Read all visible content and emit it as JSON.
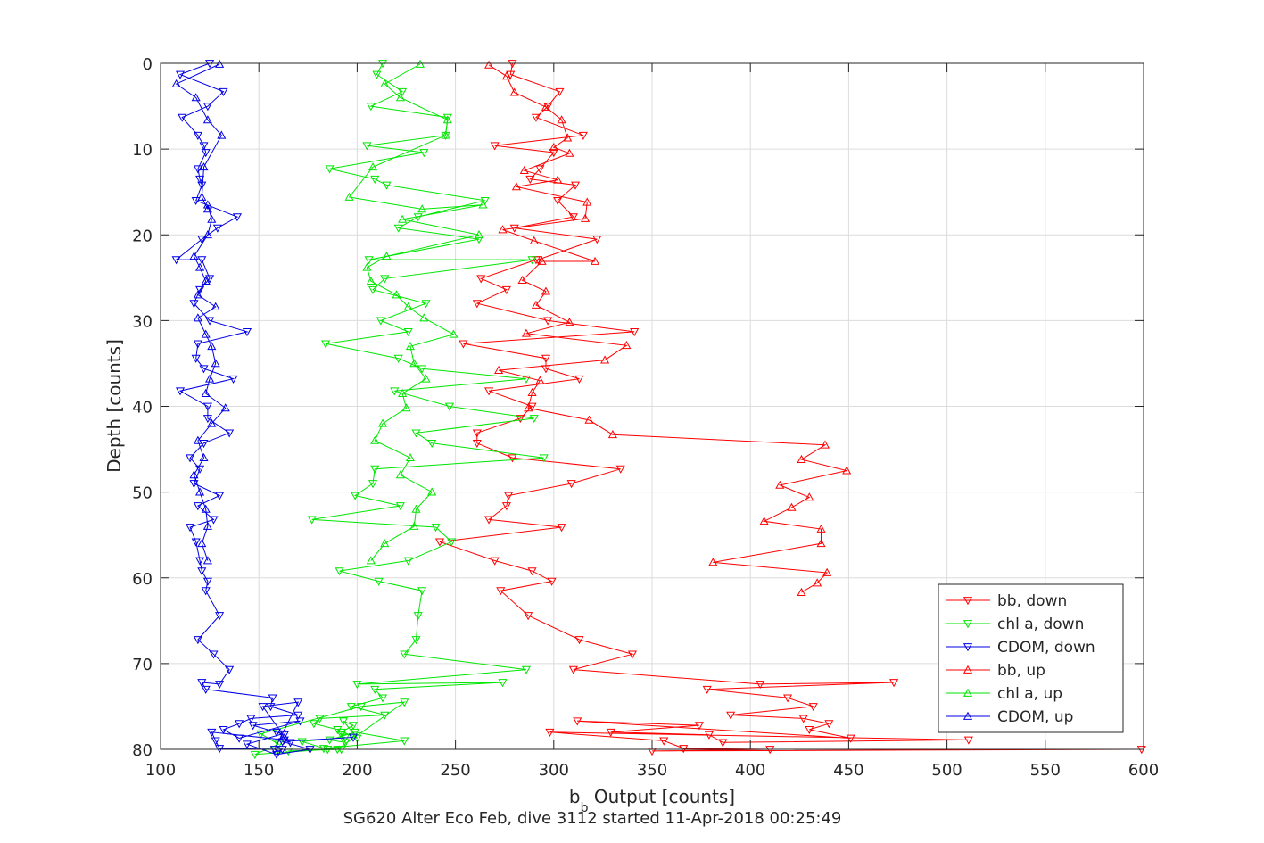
{
  "chart_data": {
    "type": "line",
    "title": "",
    "xlabel": "b",
    "xlabel_sub": "b",
    "xlabel_rest": " Output [counts]",
    "ylabel": "Depth [counts]",
    "caption": "SG620 Alter Eco Feb, dive 3112 started 11-Apr-2018 00:25:49",
    "xlim": [
      100,
      600
    ],
    "ylim": [
      0,
      80
    ],
    "y_reversed": true,
    "grid": true,
    "legend_position": "bottom-right",
    "xticks": [
      "100",
      "150",
      "200",
      "250",
      "300",
      "350",
      "400",
      "450",
      "500",
      "550",
      "600"
    ],
    "yticks": [
      "0",
      "10",
      "20",
      "30",
      "40",
      "50",
      "60",
      "70",
      "80"
    ],
    "series": [
      {
        "name": "bb, down",
        "color": "#ff0000",
        "marker": "triangle-down",
        "x": [
          279,
          278,
          303,
          297,
          291,
          315,
          270,
          300,
          293,
          288,
          311,
          302,
          310,
          280,
          322,
          292,
          291,
          263,
          276,
          261,
          297,
          341,
          254,
          296,
          296,
          313,
          267,
          289,
          283,
          261,
          261,
          279,
          334,
          309,
          277,
          276,
          267,
          304,
          242,
          270,
          289,
          299,
          273,
          287,
          313,
          340,
          310,
          405,
          473,
          378,
          419,
          432,
          390,
          427,
          440,
          430,
          451,
          312,
          374,
          329,
          379,
          386,
          511,
          298,
          356,
          366,
          410,
          350,
          599
        ],
        "y": [
          0,
          1.3,
          3.3,
          5,
          6.3,
          8.4,
          9.6,
          10.4,
          12.3,
          13.5,
          14.2,
          16,
          17.9,
          19.2,
          20.5,
          22.9,
          22.9,
          25.1,
          26.4,
          28,
          30,
          31.3,
          32.7,
          34.4,
          35.6,
          36.8,
          38.2,
          40,
          41.4,
          43.1,
          44.3,
          46,
          47.3,
          49,
          50.4,
          51.6,
          53.2,
          54.1,
          55.8,
          58,
          59.2,
          60.4,
          61.5,
          64.4,
          67.2,
          68.9,
          70.7,
          72.4,
          72.2,
          73,
          74,
          75,
          76,
          76.4,
          77,
          77.7,
          78.7,
          76.7,
          77.2,
          78,
          78.3,
          79.2,
          78.9,
          78,
          79,
          79.9,
          80,
          80.2,
          80
        ]
      },
      {
        "name": "chl a, down",
        "color": "#00e600",
        "marker": "triangle-down",
        "x": [
          213,
          210,
          223,
          207,
          246,
          245,
          205,
          234,
          186,
          209,
          215,
          265,
          231,
          221,
          262,
          206,
          289,
          214,
          208,
          235,
          212,
          226,
          184,
          221,
          233,
          286,
          219,
          247,
          290,
          230,
          238,
          295,
          209,
          208,
          199,
          222,
          177,
          240,
          248,
          226,
          191,
          211,
          233,
          231,
          230,
          224,
          286,
          200,
          274,
          209,
          213,
          197,
          214,
          181,
          178,
          190,
          200,
          193,
          198,
          192,
          192,
          194,
          186,
          199,
          224,
          183,
          192,
          165,
          190,
          224,
          202,
          151,
          160,
          148,
          185,
          172,
          194
        ],
        "y": [
          0,
          1.3,
          3.3,
          5,
          6.3,
          8.4,
          9.6,
          10.4,
          12.3,
          13.5,
          14.2,
          16,
          17.9,
          19.2,
          20.5,
          22.9,
          22.9,
          25.1,
          26.4,
          28,
          30,
          31.3,
          32.7,
          34.4,
          35.6,
          36.8,
          38.2,
          40,
          41.4,
          43.1,
          44.3,
          46,
          47.3,
          49,
          50.4,
          51.6,
          53.2,
          54.1,
          55.8,
          58,
          59.2,
          60.4,
          61.5,
          64.4,
          67.2,
          68.9,
          70.7,
          72.4,
          72.2,
          73,
          74,
          75,
          76,
          76.4,
          77,
          77.7,
          78.7,
          76.7,
          77.2,
          78,
          78.3,
          79.2,
          78.9,
          78,
          79,
          79.9,
          80,
          80.2,
          80,
          74.5,
          75,
          78.2,
          79.4,
          80.6,
          80,
          79.1,
          78.6
        ]
      },
      {
        "name": "CDOM, down",
        "color": "#0000e6",
        "marker": "triangle-down",
        "x": [
          125,
          110,
          132,
          124,
          111,
          119,
          122,
          123,
          119,
          120,
          121,
          118,
          139,
          129,
          121,
          108,
          121,
          125,
          120,
          117,
          125,
          144,
          119,
          118,
          122,
          137,
          110,
          124,
          124,
          135,
          122,
          115,
          120,
          117,
          130,
          119,
          127,
          115,
          118,
          120,
          121,
          124,
          123,
          130,
          119,
          127,
          135,
          130,
          121,
          123,
          157,
          156,
          170,
          146,
          140,
          132,
          140,
          171,
          147,
          159,
          163,
          166,
          163,
          126,
          128,
          130,
          162,
          160,
          158,
          170,
          152,
          162,
          144,
          159,
          176,
          162,
          198
        ],
        "y": [
          0,
          1.3,
          3.3,
          5,
          6.3,
          8.4,
          9.6,
          10.4,
          12.3,
          13.5,
          14.2,
          16,
          17.9,
          19.2,
          20.5,
          22.9,
          22.9,
          25.1,
          26.4,
          28,
          30,
          31.3,
          32.7,
          34.4,
          35.6,
          36.8,
          38.2,
          40,
          41.4,
          43.1,
          44.3,
          46,
          47.3,
          49,
          50.4,
          51.6,
          53.2,
          54.1,
          55.8,
          58,
          59.2,
          60.4,
          61.5,
          64.4,
          67.2,
          68.9,
          70.7,
          72.4,
          72.2,
          73,
          74,
          75,
          76,
          76.4,
          77,
          77.7,
          78.7,
          76.7,
          77.2,
          78,
          78.3,
          79.2,
          78.9,
          78,
          79,
          79.9,
          80,
          80.2,
          80,
          74.5,
          75,
          78.2,
          79.4,
          80.6,
          80,
          79.1,
          78.6
        ]
      },
      {
        "name": "bb, up",
        "color": "#ff0000",
        "marker": "triangle-up",
        "x": [
          267,
          276,
          280,
          296,
          304,
          307,
          300,
          308,
          285,
          302,
          281,
          317,
          316,
          274,
          290,
          321,
          294,
          284,
          296,
          291,
          308,
          286,
          337,
          326,
          272,
          293,
          289,
          287,
          318,
          330,
          438,
          426,
          449,
          415,
          430,
          421,
          407,
          436,
          436,
          381,
          439,
          434,
          426
        ],
        "y": [
          0.2,
          1.5,
          3.4,
          5.1,
          6.6,
          8.7,
          9.8,
          10.5,
          12.5,
          13.6,
          14.4,
          16.2,
          18.1,
          19.4,
          20.7,
          23.1,
          23.1,
          25.3,
          26.6,
          28.2,
          30.2,
          31.5,
          32.9,
          34.6,
          35.8,
          37,
          38.4,
          40.2,
          41.6,
          43.3,
          44.5,
          46.2,
          47.5,
          49.2,
          50.6,
          51.8,
          53.4,
          54.3,
          56,
          58.2,
          59.4,
          60.6,
          61.7
        ]
      },
      {
        "name": "chl a, up",
        "color": "#00e600",
        "marker": "triangle-up",
        "x": [
          232,
          214,
          222,
          246,
          245,
          208,
          196,
          233,
          264,
          223,
          262,
          215,
          205,
          207,
          220,
          226,
          234,
          249,
          227,
          229,
          235,
          223,
          225,
          213,
          209,
          227,
          222,
          238,
          230,
          229,
          214,
          207
        ],
        "y": [
          0.1,
          2.4,
          4,
          6.6,
          8.4,
          12.1,
          15.6,
          17,
          16.5,
          18.2,
          20,
          22.5,
          23.8,
          25.4,
          27,
          28.4,
          29.7,
          31.6,
          33,
          35,
          36.8,
          38.5,
          40.2,
          42,
          44,
          46,
          48,
          50,
          52,
          54,
          56,
          58
        ]
      },
      {
        "name": "CDOM, up",
        "color": "#0000e6",
        "marker": "triangle-up",
        "x": [
          130,
          108,
          118,
          124,
          131,
          122,
          121,
          124,
          124,
          126,
          124,
          117,
          120,
          123,
          119,
          128,
          119,
          123,
          126,
          128,
          125,
          123,
          133,
          126,
          119,
          122,
          117,
          120,
          123,
          124,
          121,
          124
        ],
        "y": [
          0.1,
          2.4,
          4,
          6.6,
          8.4,
          12.1,
          15.6,
          17,
          16.5,
          18.2,
          20,
          22.5,
          23.8,
          25.4,
          27,
          28.4,
          29.7,
          31.6,
          33,
          35,
          36.8,
          38.5,
          40.2,
          42,
          44,
          46,
          48,
          50,
          52,
          54,
          56,
          58
        ]
      }
    ]
  }
}
